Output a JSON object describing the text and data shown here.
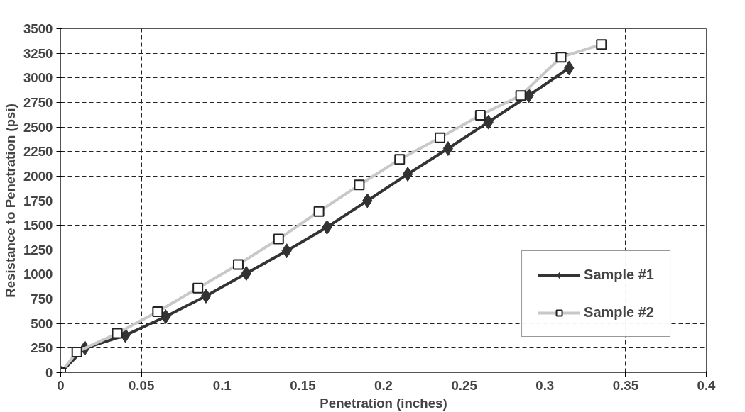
{
  "chart_data": {
    "type": "line",
    "xlabel": "Penetration (inches)",
    "ylabel": "Resistance to Penetration (psi)",
    "xlim": [
      0,
      0.4
    ],
    "xticks": [
      {
        "value": 0,
        "label": "0"
      },
      0.05,
      0.1,
      0.15,
      0.2,
      0.25,
      0.3,
      0.35,
      0.4
    ],
    "ylim": [
      0,
      3500
    ],
    "yticks": [
      0,
      250,
      500,
      750,
      1000,
      1250,
      1500,
      1750,
      2000,
      2250,
      2500,
      2750,
      3000,
      3250,
      3500
    ],
    "grid": true,
    "legend": "bottom right",
    "series": [
      {
        "name": "Sample #1",
        "color": "#333333",
        "marker": "diamond",
        "line_style": "solid",
        "x": [
          0,
          0.015,
          0.04,
          0.065,
          0.09,
          0.115,
          0.14,
          0.165,
          0.19,
          0.215,
          0.24,
          0.265,
          0.29,
          0.315
        ],
        "values": [
          0,
          250,
          380,
          570,
          780,
          1010,
          1240,
          1480,
          1750,
          2020,
          2280,
          2550,
          2820,
          3100
        ]
      },
      {
        "name": "Sample #2",
        "color": "#c8c8c8",
        "marker": "square",
        "line_style": "solid",
        "x": [
          0,
          0.01,
          0.035,
          0.06,
          0.085,
          0.11,
          0.135,
          0.16,
          0.185,
          0.21,
          0.235,
          0.26,
          0.285,
          0.31,
          0.335
        ],
        "values": [
          0,
          210,
          400,
          620,
          860,
          1100,
          1360,
          1640,
          1910,
          2170,
          2390,
          2620,
          2820,
          3210,
          3340
        ]
      }
    ]
  }
}
